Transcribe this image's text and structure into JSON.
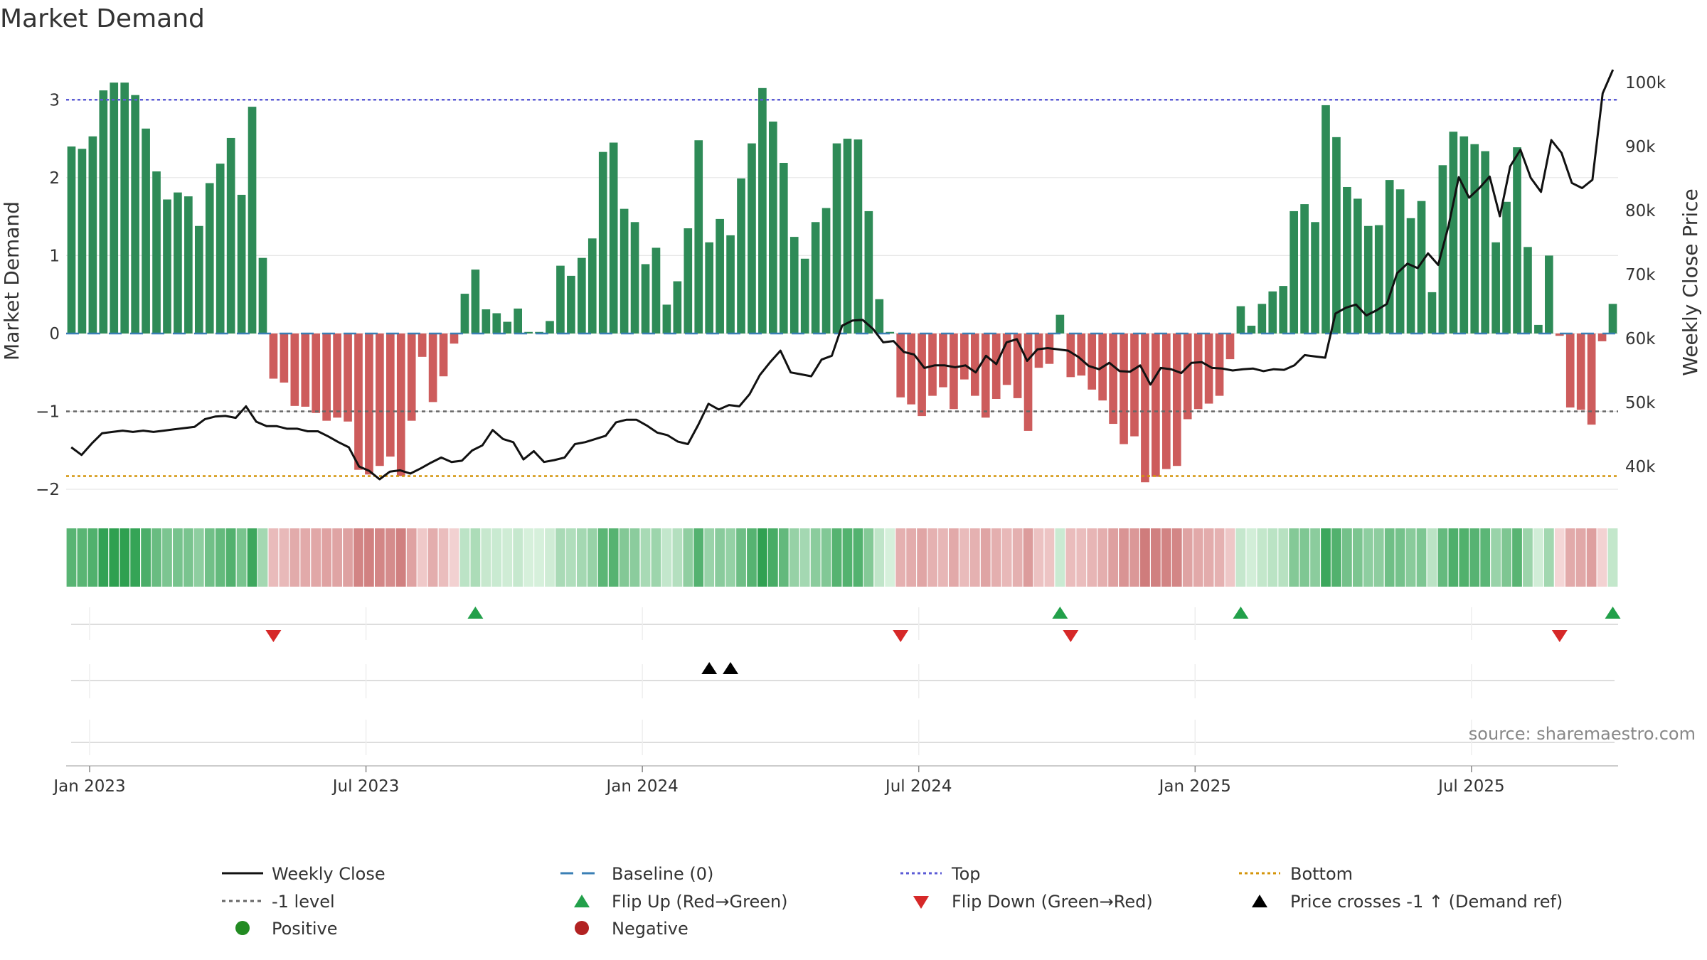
{
  "chart_data": {
    "type": "bar",
    "title": "Market Demand",
    "ylabel": "Market Demand",
    "y2label": "Weekly Close Price",
    "ylim": [
      -2.2,
      3.55
    ],
    "y2lim": [
      34000,
      104000
    ],
    "yticks": [
      "3",
      "2",
      "1",
      "0",
      "−1",
      "−2"
    ],
    "y2ticks": [
      "100k",
      "90k",
      "80k",
      "70k",
      "60k",
      "50k",
      "40k"
    ],
    "xticks": [
      "Jan 2023",
      "Jul 2023",
      "Jan 2024",
      "Jul 2024",
      "Jan 2025",
      "Jul 2025"
    ],
    "reference_lines": {
      "top": 3.0,
      "minus_one": -1.0,
      "bottom": -1.83,
      "baseline": 0
    },
    "demand": [
      2.4,
      2.37,
      2.53,
      3.12,
      3.22,
      3.22,
      3.06,
      2.63,
      2.08,
      1.72,
      1.81,
      1.76,
      1.38,
      1.93,
      2.18,
      2.51,
      1.78,
      2.91,
      0.97,
      -0.58,
      -0.63,
      -0.93,
      -0.94,
      -1.02,
      -1.12,
      -1.08,
      -1.13,
      -1.75,
      -1.81,
      -1.7,
      -1.58,
      -1.83,
      -1.12,
      -0.3,
      -0.88,
      -0.55,
      -0.13,
      0.51,
      0.82,
      0.31,
      0.26,
      0.15,
      0.32,
      0.02,
      0.02,
      0.16,
      0.87,
      0.74,
      0.97,
      1.22,
      2.33,
      2.45,
      1.6,
      1.43,
      0.89,
      1.1,
      0.37,
      0.67,
      1.35,
      2.48,
      1.17,
      1.47,
      1.26,
      1.99,
      2.44,
      3.15,
      2.72,
      2.19,
      1.24,
      0.96,
      1.43,
      1.61,
      2.44,
      2.5,
      2.49,
      1.57,
      0.44,
      0.02,
      -0.82,
      -0.91,
      -1.06,
      -0.8,
      -0.69,
      -0.97,
      -0.59,
      -0.8,
      -1.08,
      -0.84,
      -0.66,
      -0.83,
      -1.25,
      -0.44,
      -0.39,
      0.24,
      -0.56,
      -0.54,
      -0.72,
      -0.86,
      -1.16,
      -1.42,
      -1.32,
      -1.91,
      -1.84,
      -1.74,
      -1.7,
      -1.1,
      -0.97,
      -0.9,
      -0.8,
      -0.33,
      0.35,
      0.1,
      0.38,
      0.54,
      0.61,
      1.57,
      1.66,
      1.43,
      2.93,
      2.52,
      1.88,
      1.73,
      1.38,
      1.39,
      1.97,
      1.85,
      1.48,
      1.7,
      0.53,
      2.16,
      2.59,
      2.53,
      2.43,
      2.34,
      1.17,
      1.69,
      2.39,
      1.11,
      0.11,
      1.0,
      -0.03,
      -0.95,
      -0.98,
      -1.17,
      -0.1,
      0.38
    ],
    "weekly_close": [
      43000,
      41800,
      43600,
      45200,
      45400,
      45600,
      45400,
      45600,
      45400,
      45600,
      45800,
      46000,
      46200,
      47400,
      47800,
      47900,
      47600,
      49400,
      47000,
      46300,
      46300,
      45900,
      45900,
      45500,
      45500,
      44700,
      43800,
      43000,
      40000,
      39300,
      38000,
      39200,
      39400,
      38900,
      39700,
      40600,
      41400,
      40700,
      40900,
      42500,
      43300,
      45700,
      44300,
      43800,
      41100,
      42400,
      40700,
      41000,
      41400,
      43500,
      43800,
      44300,
      44800,
      46900,
      47300,
      47300,
      46400,
      45300,
      44900,
      43900,
      43500,
      46500,
      49800,
      48900,
      49600,
      49400,
      51300,
      54300,
      56300,
      58100,
      54700,
      54400,
      54100,
      56700,
      57300,
      62000,
      62800,
      62900,
      61500,
      59400,
      59600,
      57900,
      57500,
      55400,
      55800,
      55800,
      55500,
      55800,
      54700,
      57300,
      56000,
      59400,
      59900,
      56500,
      58300,
      58500,
      58300,
      58100,
      57100,
      55700,
      55200,
      56200,
      54900,
      54800,
      55800,
      52800,
      55400,
      55200,
      54600,
      56200,
      56300,
      55400,
      55300,
      55000,
      55200,
      55300,
      54900,
      55200,
      55100,
      55800,
      57400,
      57200,
      57000,
      63900,
      64800,
      65300,
      63600,
      64400,
      65400,
      70200,
      71700,
      71000,
      73300,
      71500,
      77600,
      85200,
      82000,
      83500,
      85300,
      79100,
      86900,
      89500,
      85100,
      82900,
      91000,
      89000,
      84300,
      83500,
      84800,
      98300,
      102000
    ],
    "flip_up_weeks": [
      38,
      93,
      110,
      145
    ],
    "flip_down_weeks": [
      19,
      78,
      94,
      140
    ],
    "price_cross_weeks": [
      60,
      62
    ],
    "legend": {
      "weekly_close": "Weekly Close",
      "baseline": "Baseline (0)",
      "top": "Top",
      "bottom": "Bottom",
      "minus_one": "-1 level",
      "flip_up": "Flip Up (Red→Green)",
      "flip_down": "Flip Down (Green→Red)",
      "price_cross": "Price crosses -1 ↑ (Demand ref)",
      "positive": "Positive",
      "negative": "Negative"
    },
    "source": "source: sharemaestro.com"
  },
  "colors": {
    "positive_bar": "#2e8b57",
    "negative_bar": "#cd5c5c",
    "price_line": "#111111",
    "top_line": "#5b5bd6",
    "bottom_line": "#d4940a",
    "minus_one_line": "#666666",
    "baseline": "#3a7fb5",
    "flip_up": "#22a04a",
    "flip_down": "#d62828",
    "positive_dot": "#228b22",
    "negative_dot": "#b22222"
  }
}
